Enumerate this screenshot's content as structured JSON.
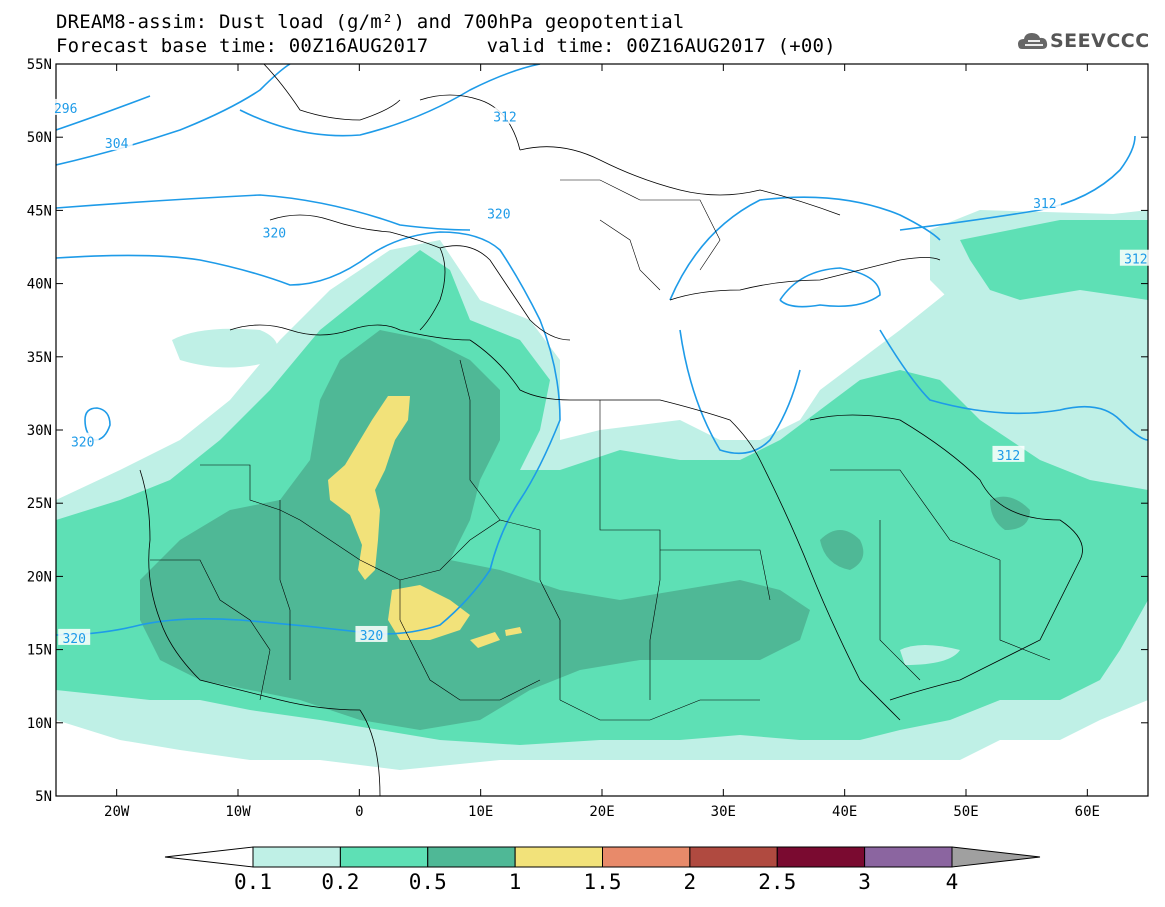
{
  "title": {
    "line1": "DREAM8-assim: Dust load (g/m²) and 700hPa geopotential",
    "line2": "Forecast base time: 00Z16AUG2017     valid time: 00Z16AUG2017 (+00)"
  },
  "logo": {
    "text": "SEEVCCC",
    "icon": "cloud-logo-icon"
  },
  "map": {
    "projection": "lat-lon",
    "lon_range": [
      -25,
      65
    ],
    "lat_range": [
      5,
      55
    ],
    "lat_ticks": [
      {
        "value": 55,
        "label": "55N"
      },
      {
        "value": 50,
        "label": "50N"
      },
      {
        "value": 45,
        "label": "45N"
      },
      {
        "value": 40,
        "label": "40N"
      },
      {
        "value": 35,
        "label": "35N"
      },
      {
        "value": 30,
        "label": "30N"
      },
      {
        "value": 25,
        "label": "25N"
      },
      {
        "value": 20,
        "label": "20N"
      },
      {
        "value": 15,
        "label": "15N"
      },
      {
        "value": 10,
        "label": "10N"
      },
      {
        "value": 5,
        "label": "5N"
      }
    ],
    "lon_ticks": [
      {
        "value": -20,
        "label": "20W"
      },
      {
        "value": -10,
        "label": "10W"
      },
      {
        "value": 0,
        "label": "0"
      },
      {
        "value": 10,
        "label": "10E"
      },
      {
        "value": 20,
        "label": "20E"
      },
      {
        "value": 30,
        "label": "30E"
      },
      {
        "value": 40,
        "label": "40E"
      },
      {
        "value": 50,
        "label": "50E"
      },
      {
        "value": 60,
        "label": "60E"
      }
    ],
    "contour_color": "#1e9be8",
    "contour_labels": [
      {
        "text": "296",
        "lon": -24.2,
        "lat": 52.0
      },
      {
        "text": "304",
        "lon": -20.0,
        "lat": 49.6
      },
      {
        "text": "312",
        "lon": 12.0,
        "lat": 51.4
      },
      {
        "text": "320",
        "lon": -7.0,
        "lat": 43.5
      },
      {
        "text": "320",
        "lon": 11.5,
        "lat": 44.8
      },
      {
        "text": "312",
        "lon": 56.5,
        "lat": 45.5
      },
      {
        "text": "312",
        "lon": 70.0,
        "lat": 45.5
      },
      {
        "text": "312",
        "lon": 64.0,
        "lat": 41.7
      },
      {
        "text": "312",
        "lon": 67.5,
        "lat": 41.4
      },
      {
        "text": "312",
        "lon": 71.5,
        "lat": 35.8
      },
      {
        "text": "312",
        "lon": 53.5,
        "lat": 28.3
      },
      {
        "text": "320",
        "lon": -22.8,
        "lat": 29.2
      },
      {
        "text": "320",
        "lon": -23.5,
        "lat": 15.8
      },
      {
        "text": "320",
        "lon": 1.0,
        "lat": 16.0
      }
    ]
  },
  "legend": {
    "colors": [
      "#ffffff",
      "#bff0e6",
      "#5ee0b5",
      "#4fb896",
      "#f2e27a",
      "#e88a6a",
      "#b04a40",
      "#7a0a30",
      "#8b65a0",
      "#a0a0a0"
    ],
    "labels": [
      "0.1",
      "0.2",
      "0.5",
      "1",
      "1.5",
      "2",
      "2.5",
      "3",
      "4"
    ]
  }
}
